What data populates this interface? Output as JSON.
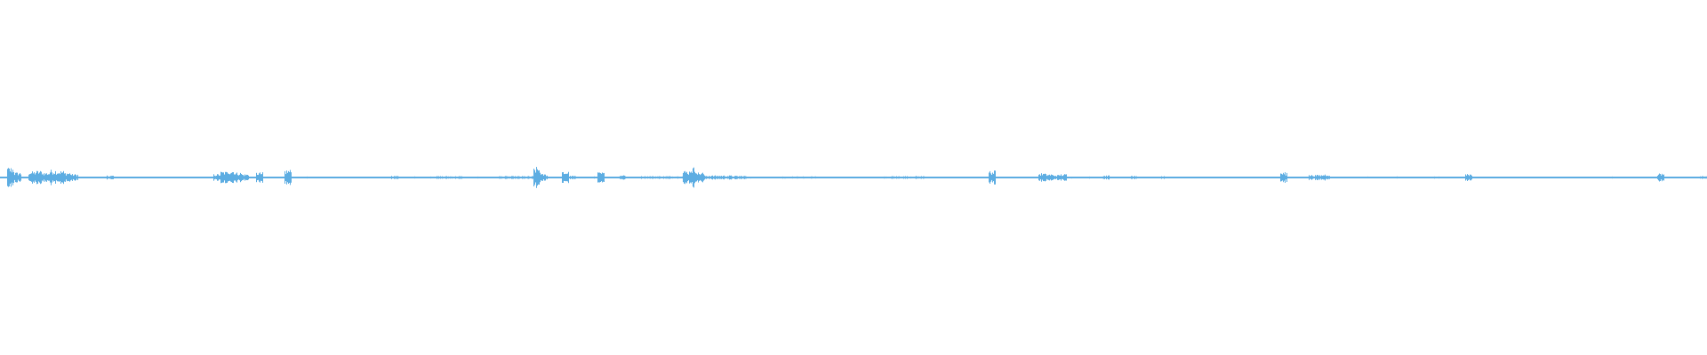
{
  "chart_data": {
    "type": "waveform",
    "color": "#5dade2",
    "background": "#ffffff",
    "amplitude_range": [
      -1,
      1
    ],
    "envelope": {
      "bins": 240,
      "baseline": 0.003,
      "peaks": [
        [
          1,
          0.06
        ],
        [
          2,
          0.03
        ],
        [
          4,
          0.035
        ],
        [
          5,
          0.04
        ],
        [
          6,
          0.03
        ],
        [
          7,
          0.045
        ],
        [
          8,
          0.04
        ],
        [
          9,
          0.03
        ],
        [
          10,
          0.02
        ],
        [
          15,
          0.012
        ],
        [
          30,
          0.02
        ],
        [
          31,
          0.035
        ],
        [
          32,
          0.045
        ],
        [
          33,
          0.03
        ],
        [
          34,
          0.02
        ],
        [
          36,
          0.03
        ],
        [
          40,
          0.045
        ],
        [
          55,
          0.01
        ],
        [
          61,
          0.008
        ],
        [
          62,
          0.008
        ],
        [
          63,
          0.008
        ],
        [
          64,
          0.008
        ],
        [
          70,
          0.008
        ],
        [
          71,
          0.008
        ],
        [
          72,
          0.008
        ],
        [
          73,
          0.008
        ],
        [
          74,
          0.008
        ],
        [
          75,
          0.06
        ],
        [
          76,
          0.02
        ],
        [
          79,
          0.035
        ],
        [
          80,
          0.01
        ],
        [
          84,
          0.03
        ],
        [
          87,
          0.015
        ],
        [
          90,
          0.008
        ],
        [
          91,
          0.008
        ],
        [
          92,
          0.008
        ],
        [
          93,
          0.008
        ],
        [
          94,
          0.008
        ],
        [
          95,
          0.008
        ],
        [
          96,
          0.04
        ],
        [
          97,
          0.06
        ],
        [
          98,
          0.03
        ],
        [
          99,
          0.012
        ],
        [
          100,
          0.012
        ],
        [
          101,
          0.012
        ],
        [
          102,
          0.012
        ],
        [
          103,
          0.01
        ],
        [
          104,
          0.01
        ],
        [
          110,
          0.006
        ],
        [
          111,
          0.006
        ],
        [
          112,
          0.006
        ],
        [
          113,
          0.006
        ],
        [
          114,
          0.006
        ],
        [
          115,
          0.006
        ],
        [
          125,
          0.008
        ],
        [
          126,
          0.008
        ],
        [
          127,
          0.008
        ],
        [
          128,
          0.008
        ],
        [
          129,
          0.008
        ],
        [
          139,
          0.04
        ],
        [
          146,
          0.025
        ],
        [
          147,
          0.02
        ],
        [
          148,
          0.015
        ],
        [
          149,
          0.02
        ],
        [
          155,
          0.012
        ],
        [
          159,
          0.01
        ],
        [
          163,
          0.008
        ],
        [
          180,
          0.03
        ],
        [
          184,
          0.015
        ],
        [
          185,
          0.015
        ],
        [
          186,
          0.02
        ],
        [
          206,
          0.02
        ],
        [
          233,
          0.025
        ],
        [
          239,
          0.008
        ]
      ]
    }
  }
}
